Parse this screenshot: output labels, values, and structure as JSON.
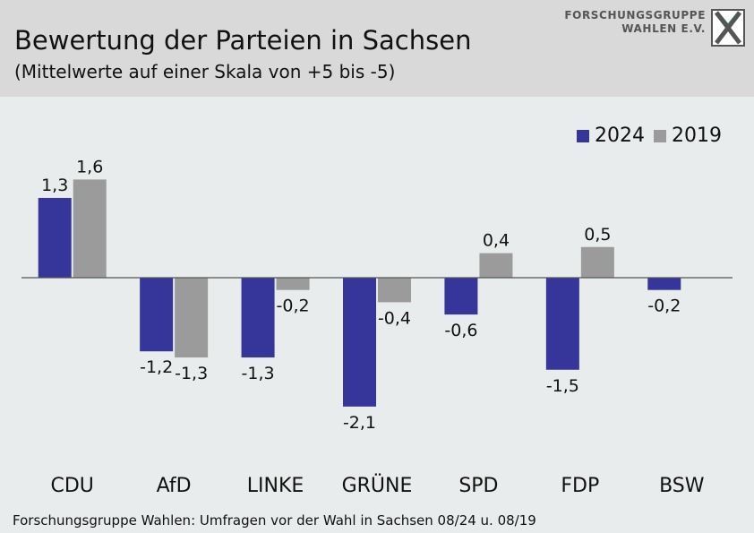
{
  "header": {
    "title": "Bewertung der Parteien in Sachsen",
    "subtitle": "(Mittelwerte auf einer Skala von +5 bis -5)",
    "logo_line1": "FORSCHUNGSGRUPPE",
    "logo_line2": "WAHLEN E.V."
  },
  "footer": {
    "source": "Forschungsgruppe Wahlen: Umfragen vor der Wahl in Sachsen 08/24 u. 08/19"
  },
  "colors": {
    "series_2024": "#36359a",
    "series_2019": "#9b9b9b",
    "background": "#e9ecec",
    "header": "#d9d9d9"
  },
  "chart_data": {
    "type": "bar",
    "categories": [
      "CDU",
      "AfD",
      "LINKE",
      "GRÜNE",
      "SPD",
      "FDP",
      "BSW"
    ],
    "series": [
      {
        "name": "2024",
        "values": [
          1.3,
          -1.2,
          -1.3,
          -2.1,
          -0.6,
          -1.5,
          -0.2
        ],
        "labels": [
          "1,3",
          "-1,2",
          "-1,3",
          "-2,1",
          "-0,6",
          "-1,5",
          "-0,2"
        ]
      },
      {
        "name": "2019",
        "values": [
          1.6,
          -1.3,
          -0.2,
          -0.4,
          0.4,
          0.5,
          null
        ],
        "labels": [
          "1,6",
          "-1,3",
          "-0,2",
          "-0,4",
          "0,4",
          "0,5",
          ""
        ]
      }
    ],
    "legend_position": "top-right",
    "grid": false
  }
}
